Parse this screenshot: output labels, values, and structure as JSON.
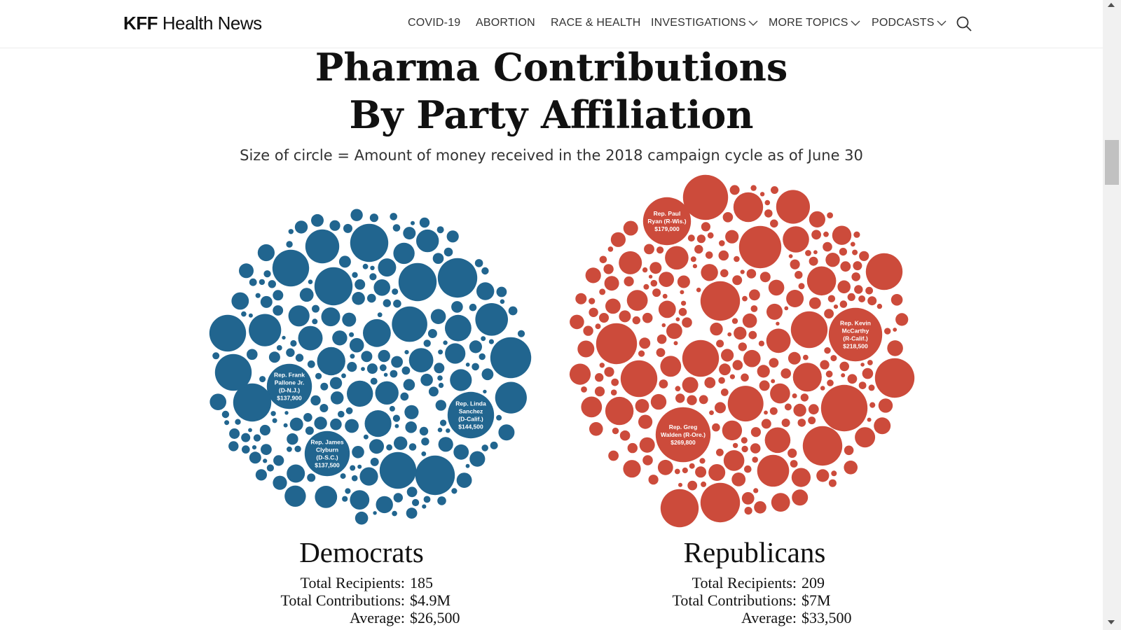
{
  "header": {
    "logo_bold": "KFF",
    "logo_rest": " Health News",
    "nav": [
      {
        "label": "COVID-19",
        "dropdown": false
      },
      {
        "label": "ABORTION",
        "dropdown": false
      },
      {
        "label": "RACE & HEALTH",
        "dropdown": false
      },
      {
        "label": "INVESTIGATIONS",
        "dropdown": true
      },
      {
        "label": "MORE TOPICS",
        "dropdown": true
      },
      {
        "label": "PODCASTS",
        "dropdown": true
      }
    ],
    "search_icon": "search-icon"
  },
  "title_line1": "Pharma Contributions",
  "title_line2": "By Party Affiliation",
  "subtitle": "Size of circle = Amount of money received in the 2018 campaign cycle as of June 30",
  "colors": {
    "democrat": "#21658f",
    "republican": "#cc4b3b"
  },
  "chart_data": {
    "type": "bubble",
    "size_encoding": "Amount of money received in the 2018 campaign cycle as of June 30",
    "groups": [
      {
        "name": "Democrats",
        "labeled": [
          {
            "name": "Rep. Frank Pallone Jr. (D-N.J.)",
            "label": [
              "Rep. Frank",
              "Pallone Jr.",
              "(D-N.J.)",
              "$137,900"
            ],
            "amount": 137900
          },
          {
            "name": "Rep. Linda Sanchez (D-Calif.)",
            "label": [
              "Rep. Linda",
              "Sanchez",
              "(D-Calif.)",
              "$144,500"
            ],
            "amount": 144500
          },
          {
            "name": "Rep. James Clyburn (D-S.C.)",
            "label": [
              "Rep. James",
              "Clyburn",
              "(D-S.C.)",
              "$137,500"
            ],
            "amount": 137500
          }
        ],
        "total_recipients": 185,
        "total_contributions": "$4.9M",
        "average": "$26,500"
      },
      {
        "name": "Republicans",
        "labeled": [
          {
            "name": "Rep. Paul Ryan (R-Wis.)",
            "label": [
              "Rep. Paul",
              "Ryan (R-Wis.)",
              "$179,000"
            ],
            "amount": 179000
          },
          {
            "name": "Rep. Kevin McCarthy (R-Calif.)",
            "label": [
              "Rep. Kevin",
              "McCarthy",
              "(R-Calif.)",
              "$218,500"
            ],
            "amount": 218500
          },
          {
            "name": "Rep. Greg Walden (R-Ore.)",
            "label": [
              "Rep. Greg",
              "Walden (R-Ore.)",
              "$269,800"
            ],
            "amount": 269800
          }
        ],
        "total_recipients": 209,
        "total_contributions": "$7M",
        "average": "$33,500"
      }
    ]
  },
  "summary": {
    "dem": {
      "name": "Democrats",
      "recipients_label": "Total Recipients:",
      "recipients": "185",
      "contributions_label": "Total Contributions:",
      "contributions": "$4.9M",
      "average_label": "Average:",
      "average": "$26,500"
    },
    "rep": {
      "name": "Republicans",
      "recipients_label": "Total Recipients:",
      "recipients": "209",
      "contributions_label": "Total Contributions:",
      "contributions": "$7M",
      "average_label": "Average:",
      "average": "$33,500"
    }
  }
}
